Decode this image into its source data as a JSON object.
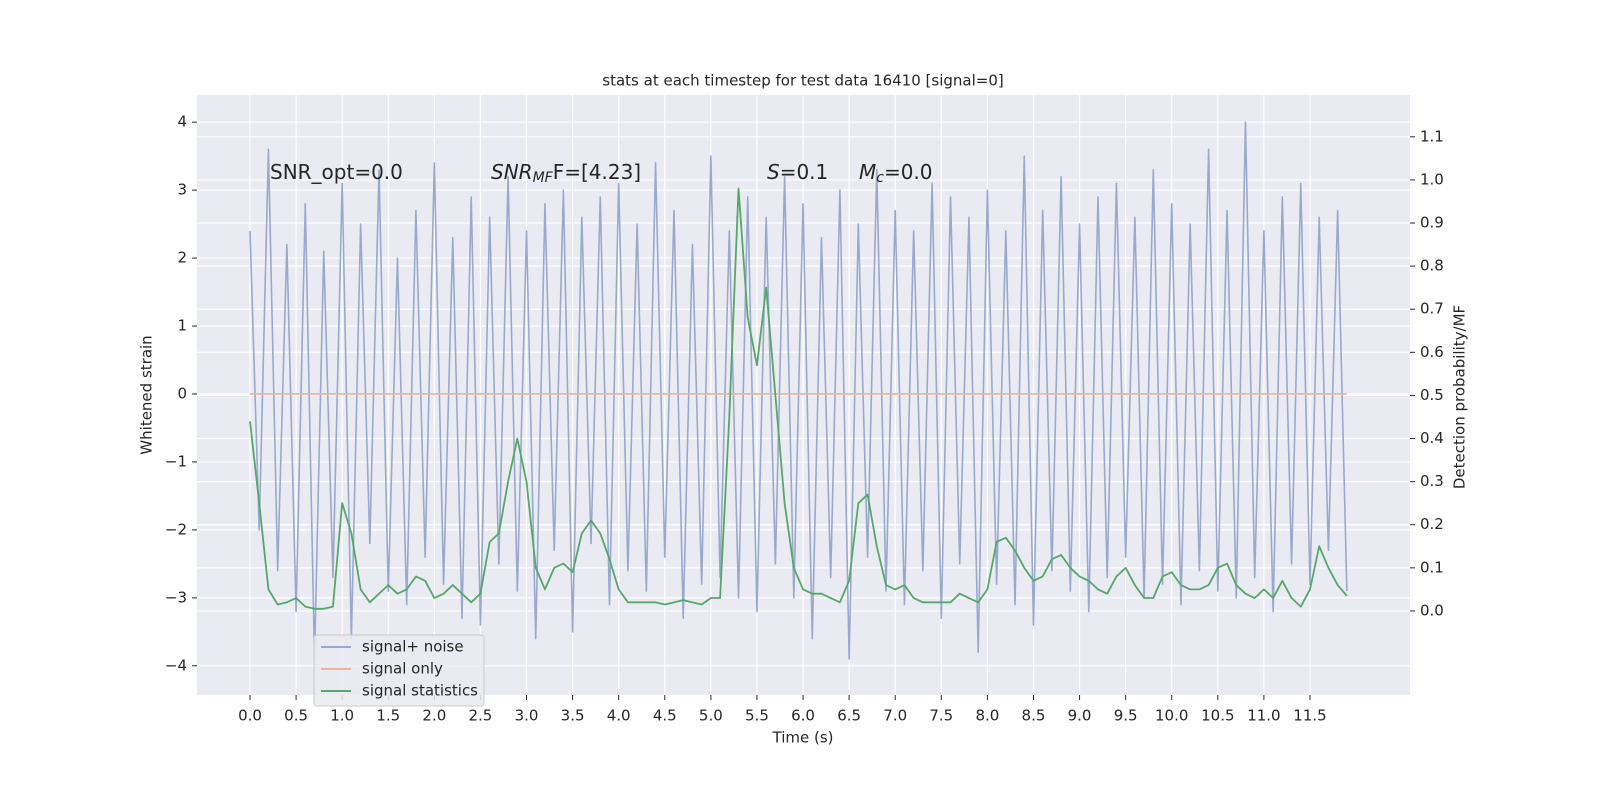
{
  "chart_data": {
    "type": "line",
    "title": "stats at each timestep for test data 16410 [signal=0]",
    "xlabel": "Time (s)",
    "ylabel": "Whitened strain",
    "y2label": "Detection probability/MF",
    "grid": true,
    "legend_loc": "lower left",
    "background": "#eaeaf2",
    "xlim": [
      -0.575,
      12.585
    ],
    "ylim": [
      -4.43,
      4.4
    ],
    "y2lim": [
      -0.195,
      1.197
    ],
    "xticks": [
      {
        "value": 0,
        "label": "0.0"
      },
      0.5,
      {
        "value": 1,
        "label": "1.0"
      },
      1.5,
      {
        "value": 2,
        "label": "2.0"
      },
      2.5,
      {
        "value": 3,
        "label": "3.0"
      },
      3.5,
      {
        "value": 4,
        "label": "4.0"
      },
      4.5,
      {
        "value": 5,
        "label": "5.0"
      },
      5.5,
      {
        "value": 6,
        "label": "6.0"
      },
      6.5,
      {
        "value": 7,
        "label": "7.0"
      },
      7.5,
      {
        "value": 8,
        "label": "8.0"
      },
      8.5,
      {
        "value": 9,
        "label": "9.0"
      },
      9.5,
      {
        "value": 10,
        "label": "10.0"
      },
      10.5,
      {
        "value": 11,
        "label": "11.0"
      },
      11.5
    ],
    "yticks": [
      {
        "value": -4,
        "label": "−4"
      },
      {
        "value": -3,
        "label": "−3"
      },
      {
        "value": -2,
        "label": "−2"
      },
      {
        "value": -1,
        "label": "−1"
      },
      0,
      1,
      2,
      3,
      4
    ],
    "y2ticks": [
      {
        "value": 0,
        "label": "0.0"
      },
      0.1,
      0.2,
      0.3,
      0.4,
      0.5,
      0.6,
      0.7,
      0.8,
      0.9,
      {
        "value": 1,
        "label": "1.0"
      },
      1.1
    ],
    "annotations": [
      [
        {
          "text": "SNR_opt=0.0"
        }
      ],
      [
        {
          "text": "SNR",
          "style": "italic"
        },
        {
          "text": "MF",
          "style": "italic-sub"
        },
        {
          "text": "F=[4.23]"
        }
      ],
      [
        {
          "text": "S",
          "style": "italic"
        },
        {
          "text": "=0.1"
        }
      ],
      [
        {
          "text": "M",
          "style": "italic"
        },
        {
          "text": "c",
          "style": "italic-sub"
        },
        {
          "text": "=0.0"
        }
      ]
    ],
    "x": [
      0.0,
      0.1,
      0.2,
      0.3,
      0.4,
      0.5,
      0.6,
      0.7,
      0.8,
      0.9,
      1.0,
      1.1,
      1.2,
      1.3,
      1.4,
      1.5,
      1.6,
      1.7,
      1.8,
      1.9,
      2.0,
      2.1,
      2.2,
      2.3,
      2.4,
      2.5,
      2.6,
      2.7,
      2.8,
      2.9,
      3.0,
      3.1,
      3.2,
      3.3,
      3.4,
      3.5,
      3.6,
      3.7,
      3.8,
      3.9,
      4.0,
      4.1,
      4.2,
      4.3,
      4.4,
      4.5,
      4.6,
      4.7,
      4.8,
      4.9,
      5.0,
      5.1,
      5.2,
      5.3,
      5.4,
      5.5,
      5.6,
      5.7,
      5.8,
      5.9,
      6.0,
      6.1,
      6.2,
      6.3,
      6.4,
      6.5,
      6.6,
      6.7,
      6.8,
      6.9,
      7.0,
      7.1,
      7.2,
      7.3,
      7.4,
      7.5,
      7.6,
      7.7,
      7.8,
      7.9,
      8.0,
      8.1,
      8.2,
      8.3,
      8.4,
      8.5,
      8.6,
      8.7,
      8.8,
      8.9,
      9.0,
      9.1,
      9.2,
      9.3,
      9.4,
      9.5,
      9.6,
      9.7,
      9.8,
      9.9,
      10.0,
      10.1,
      10.2,
      10.3,
      10.4,
      10.5,
      10.6,
      10.7,
      10.8,
      10.9,
      11.0,
      11.1,
      11.2,
      11.3,
      11.4,
      11.5,
      11.6,
      11.7,
      11.8,
      11.9
    ],
    "series": [
      {
        "name": "signal+ noise",
        "color": "#98a9cd",
        "values": [
          2.4,
          -2.0,
          3.6,
          -2.6,
          2.2,
          -3.2,
          2.8,
          -3.9,
          2.1,
          -2.7,
          3.1,
          -3.6,
          2.5,
          -2.2,
          3.3,
          -2.9,
          2.0,
          -3.1,
          2.7,
          -2.4,
          3.4,
          -2.8,
          2.3,
          -3.3,
          2.9,
          -3.4,
          2.6,
          -2.5,
          3.2,
          -2.9,
          2.4,
          -3.6,
          2.8,
          -2.3,
          3.0,
          -3.5,
          2.6,
          -2.2,
          2.9,
          -3.1,
          3.1,
          -2.6,
          2.5,
          -2.9,
          3.4,
          -2.4,
          2.7,
          -3.3,
          2.2,
          -2.8,
          3.5,
          -2.7,
          2.4,
          -3.0,
          2.9,
          -3.2,
          2.6,
          -2.5,
          3.2,
          -3.0,
          2.8,
          -3.6,
          2.3,
          -2.7,
          3.0,
          -3.9,
          2.5,
          -2.4,
          3.3,
          -2.9,
          2.7,
          -3.1,
          2.4,
          -2.6,
          3.1,
          -3.3,
          2.9,
          -2.5,
          2.6,
          -3.8,
          3.0,
          -2.8,
          2.4,
          -3.1,
          3.5,
          -3.4,
          2.7,
          -2.6,
          3.2,
          -2.9,
          2.5,
          -3.2,
          2.9,
          -2.7,
          3.1,
          -2.4,
          2.6,
          -3.0,
          3.3,
          -2.8,
          2.8,
          -3.1,
          2.5,
          -2.6,
          3.6,
          -2.9,
          2.7,
          -3.0,
          4.0,
          -2.7,
          2.4,
          -3.2,
          2.9,
          -2.5,
          3.1,
          -2.8,
          2.6,
          -2.3,
          2.7,
          -2.9
        ]
      },
      {
        "name": "signal only",
        "color": "#e8b69c",
        "values": [
          0,
          0,
          0,
          0,
          0,
          0,
          0,
          0,
          0,
          0,
          0,
          0,
          0,
          0,
          0,
          0,
          0,
          0,
          0,
          0,
          0,
          0,
          0,
          0,
          0,
          0,
          0,
          0,
          0,
          0,
          0,
          0,
          0,
          0,
          0,
          0,
          0,
          0,
          0,
          0,
          0,
          0,
          0,
          0,
          0,
          0,
          0,
          0,
          0,
          0,
          0,
          0,
          0,
          0,
          0,
          0,
          0,
          0,
          0,
          0,
          0,
          0,
          0,
          0,
          0,
          0,
          0,
          0,
          0,
          0,
          0,
          0,
          0,
          0,
          0,
          0,
          0,
          0,
          0,
          0,
          0,
          0,
          0,
          0,
          0,
          0,
          0,
          0,
          0,
          0,
          0,
          0,
          0,
          0,
          0,
          0,
          0,
          0,
          0,
          0,
          0,
          0,
          0,
          0,
          0,
          0,
          0,
          0,
          0,
          0,
          0,
          0,
          0,
          0,
          0,
          0,
          0,
          0,
          0,
          0
        ]
      },
      {
        "name": "signal statistics",
        "color": "#55a868",
        "axis": "y2",
        "values": [
          0.44,
          0.25,
          0.05,
          0.015,
          0.02,
          0.03,
          0.01,
          0.005,
          0.005,
          0.01,
          0.25,
          0.18,
          0.05,
          0.02,
          0.04,
          0.06,
          0.04,
          0.05,
          0.08,
          0.07,
          0.03,
          0.04,
          0.06,
          0.04,
          0.02,
          0.04,
          0.16,
          0.18,
          0.3,
          0.4,
          0.3,
          0.1,
          0.05,
          0.1,
          0.11,
          0.09,
          0.18,
          0.21,
          0.18,
          0.12,
          0.05,
          0.02,
          0.02,
          0.02,
          0.02,
          0.015,
          0.02,
          0.025,
          0.02,
          0.015,
          0.03,
          0.03,
          0.45,
          0.98,
          0.68,
          0.57,
          0.75,
          0.5,
          0.25,
          0.1,
          0.05,
          0.04,
          0.04,
          0.03,
          0.02,
          0.07,
          0.25,
          0.27,
          0.15,
          0.06,
          0.05,
          0.06,
          0.03,
          0.02,
          0.02,
          0.02,
          0.02,
          0.04,
          0.03,
          0.02,
          0.05,
          0.16,
          0.17,
          0.14,
          0.1,
          0.07,
          0.08,
          0.12,
          0.13,
          0.1,
          0.08,
          0.07,
          0.05,
          0.04,
          0.08,
          0.1,
          0.06,
          0.03,
          0.03,
          0.08,
          0.09,
          0.06,
          0.05,
          0.05,
          0.06,
          0.1,
          0.11,
          0.06,
          0.04,
          0.03,
          0.05,
          0.03,
          0.07,
          0.03,
          0.01,
          0.05,
          0.15,
          0.1,
          0.06,
          0.035
        ]
      }
    ]
  }
}
